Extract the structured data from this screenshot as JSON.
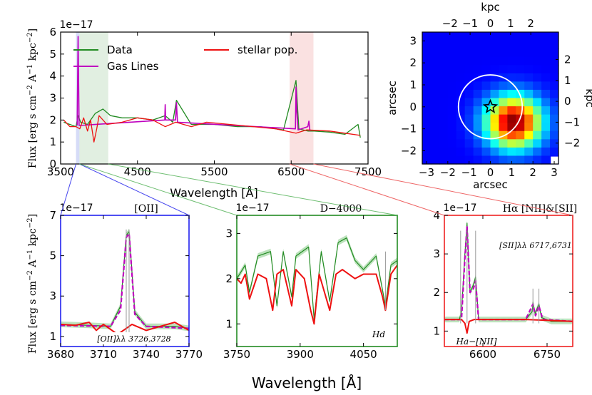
{
  "chart_data": [
    {
      "type": "line",
      "panel": "full-spectrum",
      "title": "",
      "xlabel": "Wavelength [Å]",
      "ylabel": "Flux [erg s cm^-2 A^-1 kpc^-2]",
      "exponent_label": "1e−17",
      "xlim": [
        3500,
        7500
      ],
      "ylim": [
        0,
        6
      ],
      "xticks": [
        "3500",
        "4500",
        "5500",
        "6500",
        "7500"
      ],
      "yticks": [
        "0",
        "1",
        "2",
        "3",
        "4",
        "5",
        "6"
      ],
      "highlight_bands": [
        {
          "from": 3700,
          "to": 3745,
          "color": "#b5bff0"
        },
        {
          "from": 3745,
          "to": 4120,
          "color": "#c8e2c8"
        },
        {
          "from": 6480,
          "to": 6790,
          "color": "#f6c9c9"
        }
      ],
      "legend": {
        "placement": "top",
        "entries": [
          {
            "label": "Data",
            "color": "#228b22"
          },
          {
            "label": "Gas Lines",
            "color": "#bf00bf"
          },
          {
            "label": "stellar pop.",
            "color": "#ee1111"
          }
        ]
      },
      "series": [
        {
          "name": "Data",
          "color": "#228b22",
          "x": [
            3540,
            3620,
            3700,
            3728,
            3760,
            3850,
            3950,
            4050,
            4150,
            4300,
            4500,
            4700,
            4861,
            4959,
            5007,
            5200,
            5500,
            5800,
            6100,
            6400,
            6563,
            6600,
            6717,
            6800,
            7000,
            7200,
            7370,
            7400
          ],
          "y": [
            1.9,
            1.8,
            1.7,
            2.2,
            1.9,
            1.8,
            2.3,
            2.5,
            2.2,
            2.1,
            2.1,
            2.0,
            2.2,
            1.9,
            2.9,
            1.8,
            1.8,
            1.7,
            1.7,
            1.55,
            3.8,
            1.6,
            1.5,
            1.5,
            1.45,
            1.35,
            1.8,
            1.2
          ]
        },
        {
          "name": "Gas Lines",
          "color": "#bf00bf",
          "x": [
            3715,
            3727,
            3740,
            4855,
            4861,
            4867,
            4995,
            5007,
            5020,
            6555,
            6563,
            6573,
            6590,
            6717,
            6731,
            6745
          ],
          "y": [
            1.75,
            5.8,
            1.75,
            2.0,
            2.7,
            2.0,
            2.0,
            2.8,
            1.9,
            1.6,
            3.5,
            2.4,
            1.55,
            1.7,
            1.95,
            1.5
          ]
        },
        {
          "name": "stellar pop.",
          "color": "#ee1111",
          "x": [
            3540,
            3620,
            3700,
            3750,
            3800,
            3850,
            3890,
            3933,
            3970,
            4000,
            4102,
            4300,
            4500,
            4700,
            4861,
            5000,
            5200,
            5400,
            5700,
            6000,
            6300,
            6563,
            6700,
            7000,
            7200,
            7400
          ],
          "y": [
            2.0,
            1.7,
            1.7,
            1.6,
            2.1,
            1.5,
            2.0,
            1.0,
            1.6,
            2.2,
            1.8,
            1.9,
            2.1,
            2.0,
            1.7,
            1.9,
            1.7,
            1.9,
            1.8,
            1.7,
            1.6,
            1.4,
            1.55,
            1.5,
            1.4,
            1.3
          ]
        }
      ]
    },
    {
      "type": "heatmap",
      "panel": "image-map",
      "xlabel": "arcsec",
      "ylabel": "arcsec",
      "top_label": "kpc",
      "right_label": "kpc",
      "xlim": [
        -3.2,
        3.2
      ],
      "ylim": [
        -2.6,
        3.4
      ],
      "xticks": [
        "−3",
        "−2",
        "−1",
        "0",
        "1",
        "2",
        "3"
      ],
      "yticks": [
        "−2",
        "−1",
        "0",
        "1",
        "2",
        "3"
      ],
      "kpc_x_ticks": [
        "−2",
        "−1",
        "0",
        "1",
        "2"
      ],
      "kpc_y_ticks": [
        "−2",
        "−1",
        "0",
        "1",
        "2"
      ],
      "peak_arcsec": [
        1.1,
        -0.7
      ],
      "star_marker_arcsec": [
        0.0,
        0.0
      ],
      "circle_radius_arcsec": 1.5,
      "colormap": "jet"
    },
    {
      "type": "line",
      "panel": "OII-zoom",
      "title": "[OII]",
      "frame_color": "#2222ee",
      "exponent_label": "1e−17",
      "xlim": [
        3680,
        3770
      ],
      "ylim": [
        0.5,
        7
      ],
      "xticks": [
        "3680",
        "3710",
        "3740",
        "3770"
      ],
      "yticks": [
        "1",
        "3",
        "5",
        "7"
      ],
      "annotation": "[OII]λλ 3726,3728",
      "series": [
        {
          "name": "Data",
          "color": "#228b22",
          "x": [
            3680,
            3700,
            3715,
            3722,
            3726,
            3728,
            3732,
            3740,
            3760,
            3770
          ],
          "y": [
            1.6,
            1.55,
            1.5,
            2.5,
            6.0,
            6.2,
            2.2,
            1.5,
            1.5,
            1.4
          ]
        },
        {
          "name": "Gas Lines",
          "color": "#bf00bf",
          "x": [
            3680,
            3715,
            3722,
            3726,
            3728,
            3732,
            3740,
            3770
          ],
          "y": [
            1.55,
            1.5,
            2.3,
            5.9,
            6.1,
            2.1,
            1.5,
            1.4
          ]
        },
        {
          "name": "stellar pop.",
          "color": "#ee1111",
          "x": [
            3680,
            3690,
            3700,
            3705,
            3710,
            3720,
            3730,
            3740,
            3750,
            3760,
            3770
          ],
          "y": [
            1.6,
            1.55,
            1.7,
            1.3,
            1.6,
            1.1,
            1.6,
            1.3,
            1.5,
            1.7,
            1.3
          ]
        }
      ]
    },
    {
      "type": "line",
      "panel": "D4000-zoom",
      "title": "D−4000",
      "frame_color": "#228b22",
      "exponent_label": "1e−17",
      "xlim": [
        3750,
        4130
      ],
      "ylim": [
        0.5,
        3.4
      ],
      "xticks": [
        "3750",
        "3900",
        "4050"
      ],
      "yticks": [
        "1",
        "2",
        "3"
      ],
      "annotation": "Hd",
      "series": [
        {
          "name": "Data",
          "color": "#228b22",
          "x": [
            3750,
            3770,
            3780,
            3800,
            3830,
            3845,
            3860,
            3880,
            3890,
            3920,
            3933,
            3950,
            3970,
            3990,
            4010,
            4030,
            4050,
            4080,
            4102,
            4115,
            4130
          ],
          "y": [
            2.0,
            2.3,
            1.7,
            2.5,
            2.6,
            1.4,
            2.6,
            1.6,
            2.5,
            2.7,
            1.1,
            2.6,
            1.5,
            2.8,
            2.9,
            2.4,
            2.2,
            2.5,
            1.4,
            2.3,
            2.4
          ]
        },
        {
          "name": "stellar pop.",
          "color": "#ee1111",
          "x": [
            3750,
            3760,
            3770,
            3780,
            3800,
            3820,
            3835,
            3845,
            3860,
            3880,
            3890,
            3910,
            3925,
            3933,
            3945,
            3970,
            3985,
            4000,
            4030,
            4050,
            4080,
            4095,
            4102,
            4115,
            4130
          ],
          "y": [
            2.0,
            1.9,
            2.1,
            1.55,
            2.1,
            2.0,
            1.3,
            2.1,
            2.2,
            1.4,
            2.2,
            2.0,
            1.3,
            1.0,
            2.1,
            1.3,
            2.1,
            2.2,
            2.0,
            2.1,
            2.1,
            1.6,
            1.3,
            2.1,
            2.3
          ]
        }
      ]
    },
    {
      "type": "line",
      "panel": "Halpha-zoom",
      "title": "Hα [NII]&[SII]",
      "frame_color": "#ee2222",
      "exponent_label": "1e−17",
      "xlim": [
        6510,
        6810
      ],
      "ylim": [
        0.6,
        4.0
      ],
      "xticks": [
        "6600",
        "6750"
      ],
      "yticks": [
        "1",
        "2",
        "3",
        "4"
      ],
      "annotations": [
        "[SII]λλ 6717,6731",
        "Ha−[NII]"
      ],
      "series": [
        {
          "name": "Data",
          "color": "#228b22",
          "x": [
            6510,
            6545,
            6550,
            6558,
            6563,
            6570,
            6578,
            6583,
            6590,
            6620,
            6700,
            6715,
            6717,
            6722,
            6731,
            6737,
            6760,
            6810
          ],
          "y": [
            1.3,
            1.3,
            1.5,
            3.0,
            3.8,
            2.0,
            2.2,
            2.4,
            1.3,
            1.3,
            1.3,
            1.5,
            1.75,
            1.45,
            1.7,
            1.35,
            1.25,
            1.25
          ]
        },
        {
          "name": "Gas Lines",
          "color": "#bf00bf",
          "x": [
            6510,
            6550,
            6558,
            6563,
            6570,
            6578,
            6583,
            6590,
            6700,
            6717,
            6723,
            6731,
            6740,
            6810
          ],
          "y": [
            1.3,
            1.3,
            2.9,
            3.7,
            2.0,
            2.1,
            2.3,
            1.3,
            1.3,
            1.7,
            1.4,
            1.65,
            1.3,
            1.25
          ]
        },
        {
          "name": "stellar pop.",
          "color": "#ee1111",
          "x": [
            6510,
            6550,
            6558,
            6563,
            6568,
            6580,
            6700,
            6810
          ],
          "y": [
            1.3,
            1.3,
            1.2,
            0.95,
            1.25,
            1.3,
            1.3,
            1.25
          ]
        }
      ]
    }
  ],
  "shared": {
    "xlabel": "Wavelength [Å]",
    "ylabel": "Flux [erg s cm^-2 A^-1 kpc^-2]"
  }
}
